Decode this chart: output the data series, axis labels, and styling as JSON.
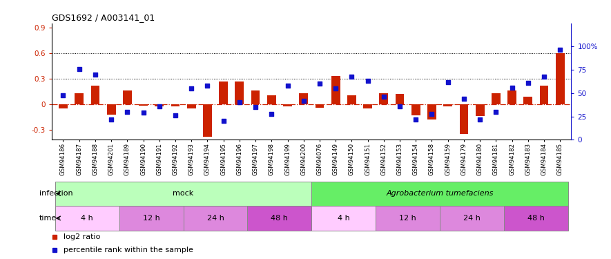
{
  "title": "GDS1692 / A003141_01",
  "samples": [
    "GSM94186",
    "GSM94187",
    "GSM94188",
    "GSM94201",
    "GSM94189",
    "GSM94190",
    "GSM94191",
    "GSM94192",
    "GSM94193",
    "GSM94194",
    "GSM94195",
    "GSM94196",
    "GSM94197",
    "GSM94198",
    "GSM94199",
    "GSM94200",
    "GSM94076",
    "GSM94149",
    "GSM94150",
    "GSM94151",
    "GSM94152",
    "GSM94153",
    "GSM94154",
    "GSM94158",
    "GSM94159",
    "GSM94179",
    "GSM94180",
    "GSM94181",
    "GSM94182",
    "GSM94183",
    "GSM94184",
    "GSM94185"
  ],
  "log2_ratio": [
    -0.05,
    0.13,
    0.22,
    -0.12,
    0.16,
    -0.02,
    -0.03,
    -0.03,
    -0.05,
    -0.38,
    0.27,
    0.27,
    0.16,
    0.1,
    -0.03,
    0.13,
    -0.04,
    0.33,
    0.1,
    -0.05,
    0.13,
    0.12,
    -0.13,
    -0.18,
    -0.03,
    -0.35,
    -0.14,
    0.13,
    0.16,
    0.09,
    0.22,
    0.6
  ],
  "percentile_rank": [
    48,
    76,
    70,
    22,
    30,
    29,
    36,
    26,
    55,
    58,
    20,
    40,
    35,
    28,
    58,
    42,
    60,
    55,
    68,
    63,
    46,
    36,
    22,
    28,
    62,
    44,
    22,
    30,
    56,
    61,
    68,
    97
  ],
  "bar_color": "#cc2200",
  "dot_color": "#1111cc",
  "zero_line_color": "#cc2200",
  "hline_values": [
    0.6,
    0.3
  ],
  "ylim_left": [
    -0.42,
    0.95
  ],
  "ylim_right": [
    0,
    125
  ],
  "yticks_left": [
    -0.3,
    0.0,
    0.3,
    0.6,
    0.9
  ],
  "yticks_right": [
    0,
    25,
    50,
    75,
    100
  ],
  "ytick_labels_right": [
    "0",
    "25",
    "50",
    "75",
    "100%"
  ],
  "infection_labels": [
    "mock",
    "Agrobacterium tumefaciens"
  ],
  "infection_colors": [
    "#bbffbb",
    "#66ee66"
  ],
  "infection_ranges": [
    [
      0,
      16
    ],
    [
      16,
      32
    ]
  ],
  "time_labels": [
    "4 h",
    "12 h",
    "24 h",
    "48 h",
    "4 h",
    "12 h",
    "24 h",
    "48 h"
  ],
  "time_alt_colors": [
    "#ffccff",
    "#dd88dd",
    "#dd88dd",
    "#cc55cc",
    "#ffccff",
    "#dd88dd",
    "#dd88dd",
    "#cc55cc"
  ],
  "time_ranges": [
    [
      0,
      4
    ],
    [
      4,
      8
    ],
    [
      8,
      12
    ],
    [
      12,
      16
    ],
    [
      16,
      20
    ],
    [
      20,
      24
    ],
    [
      24,
      28
    ],
    [
      28,
      32
    ]
  ],
  "background_color": "#ffffff",
  "legend_red": "log2 ratio",
  "legend_blue": "percentile rank within the sample"
}
